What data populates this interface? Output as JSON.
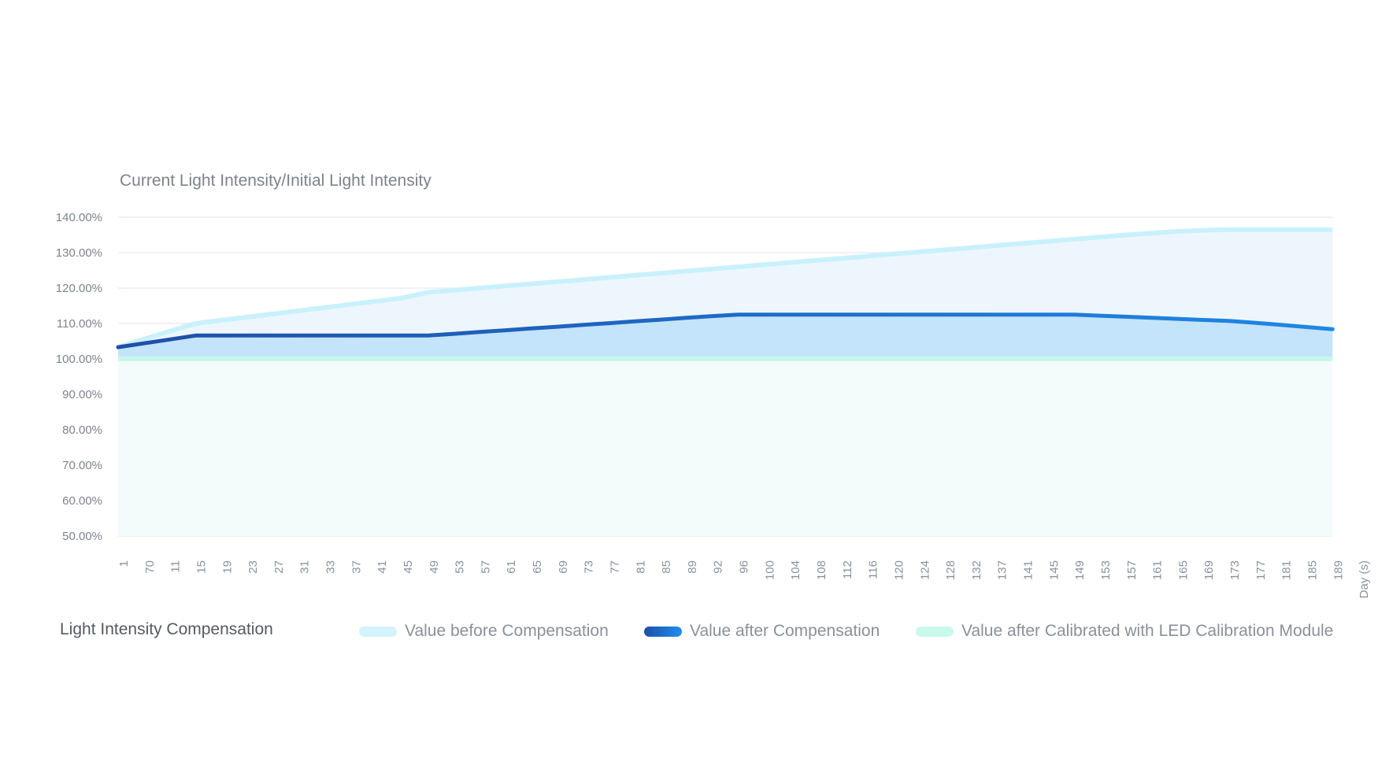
{
  "chart_data": {
    "type": "area",
    "title": "Light Intensity Compensation",
    "ylabel": "Current Light Intensity/Initial Light Intensity",
    "xlabel": "Day (s)",
    "ylim": [
      50,
      140
    ],
    "y_ticks": [
      "140.00%",
      "130.00%",
      "120.00%",
      "110.00%",
      "100.00%",
      "90.00%",
      "80.00%",
      "70.00%",
      "60.00%",
      "50.00%"
    ],
    "grid": true,
    "legend_position": "bottom",
    "categories": [
      "1",
      "70",
      "11",
      "15",
      "19",
      "23",
      "27",
      "31",
      "33",
      "37",
      "41",
      "45",
      "49",
      "53",
      "57",
      "61",
      "65",
      "69",
      "73",
      "77",
      "81",
      "85",
      "89",
      "92",
      "96",
      "100",
      "104",
      "108",
      "112",
      "116",
      "120",
      "124",
      "128",
      "132",
      "137",
      "141",
      "145",
      "149",
      "153",
      "157",
      "161",
      "165",
      "169",
      "173",
      "177",
      "181",
      "185",
      "189"
    ],
    "x_axis_end_label": "Day (s)",
    "series": [
      {
        "name": "Value before Compensation",
        "color": "#c9f1fb",
        "fill": "#eef6fd",
        "values": [
          103.3,
          105.6,
          107.8,
          110.0,
          110.9,
          111.8,
          112.7,
          113.6,
          114.5,
          115.4,
          116.3,
          117.2,
          118.8,
          119.4,
          120.0,
          120.6,
          121.2,
          121.8,
          122.4,
          123.0,
          123.6,
          124.2,
          124.8,
          125.4,
          126.0,
          126.6,
          127.2,
          127.8,
          128.4,
          129.0,
          129.6,
          130.2,
          130.8,
          131.4,
          132.0,
          132.6,
          133.2,
          133.8,
          134.4,
          135.0,
          135.5,
          136.0,
          136.3,
          136.5,
          136.5,
          136.5,
          136.5,
          136.5
        ]
      },
      {
        "name": "Value after Compensation",
        "color_start": "#1f4ea8",
        "color_end": "#1e88e5",
        "fill": "#c4e4fb",
        "values": [
          103.3,
          104.4,
          105.5,
          106.6,
          106.6,
          106.6,
          106.6,
          106.6,
          106.6,
          106.6,
          106.6,
          106.6,
          106.6,
          107.1,
          107.6,
          108.1,
          108.6,
          109.1,
          109.6,
          110.1,
          110.6,
          111.1,
          111.6,
          112.1,
          112.5,
          112.5,
          112.5,
          112.5,
          112.5,
          112.5,
          112.5,
          112.5,
          112.5,
          112.5,
          112.5,
          112.5,
          112.5,
          112.5,
          112.2,
          111.9,
          111.6,
          111.3,
          111.0,
          110.7,
          110.2,
          109.6,
          109.0,
          108.4
        ]
      },
      {
        "name": "Value after Calibrated with LED Calibration Module",
        "color": "#c8f7ea",
        "fill": "#f3fcfb",
        "values": [
          100,
          100,
          100,
          100,
          100,
          100,
          100,
          100,
          100,
          100,
          100,
          100,
          100,
          100,
          100,
          100,
          100,
          100,
          100,
          100,
          100,
          100,
          100,
          100,
          100,
          100,
          100,
          100,
          100,
          100,
          100,
          100,
          100,
          100,
          100,
          100,
          100,
          100,
          100,
          100,
          100,
          100,
          100,
          100,
          100,
          100,
          100,
          100
        ]
      }
    ]
  },
  "header": {
    "ylabel": "Current Light Intensity/Initial Light Intensity"
  },
  "legend": {
    "title": "Light Intensity Compensation",
    "items": [
      {
        "label": "Value before Compensation",
        "swatch": "#d3f3fd"
      },
      {
        "label": "Value after Compensation",
        "swatch_start": "#1f4ea8",
        "swatch_end": "#1e8fef"
      },
      {
        "label": "Value after Calibrated with LED Calibration Module",
        "swatch": "#c8f9ec"
      }
    ]
  }
}
